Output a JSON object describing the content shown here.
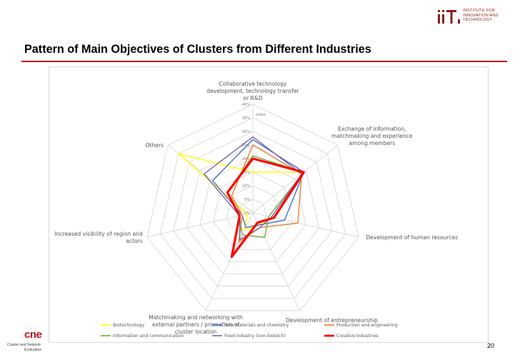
{
  "header": {
    "logo_lines": [
      "INSTITUTE FOR",
      "INNOVATION AND",
      "TECHNOLOGY"
    ],
    "logo_color": "#8a1c1c"
  },
  "slide": {
    "title": "Pattern of Main Objectives of Clusters from Different Industries",
    "accent_color": "#b5121b",
    "page_number": "20"
  },
  "footer": {
    "cne_logo": "cne",
    "cne_line1": "Cluster and Network",
    "cne_line2": "Evaluation"
  },
  "chart_data": {
    "type": "radar",
    "axes": [
      "Collaborative technology development, technology transfer or R&D",
      "Exchange of information, matchmaking and experience among members",
      "Development of human resources",
      "Development of entrepreneurship",
      "Matchmaking and networking with external partners / promotion of cluster location",
      "Increased visibility of region and actors",
      "Others"
    ],
    "axis_label_lines": [
      [
        "Collaborative technology",
        "development, technology transfer",
        "or R&D"
      ],
      [
        "Exchange of information,",
        "matchmaking and experience",
        "among members"
      ],
      [
        "Development of human resources"
      ],
      [
        "Development of entrepreneurship"
      ],
      [
        "Matchmaking and networking with",
        "external partners / promotion of",
        "cluster location"
      ],
      [
        "Increased visibility of region and",
        "actors"
      ],
      [
        "Others"
      ]
    ],
    "scale_label": "share",
    "ylim": [
      0,
      40
    ],
    "ticks": [
      "0%",
      "5%",
      "10%",
      "15%",
      "20%",
      "25%",
      "30%",
      "35%",
      "40%"
    ],
    "tick_values": [
      0,
      5,
      10,
      15,
      20,
      25,
      30,
      35,
      40
    ],
    "grid": true,
    "legend_position": "bottom",
    "series": [
      {
        "name": "Biotechnology",
        "color": "#ffff00",
        "width": 1.4,
        "values": [
          15,
          24,
          8,
          5,
          7,
          2,
          35
        ]
      },
      {
        "name": "New Materials and chemistry",
        "color": "#4472c4",
        "width": 1.4,
        "values": [
          27,
          24,
          12,
          5,
          6,
          4,
          19
        ]
      },
      {
        "name": "Production and engineering",
        "color": "#ed7d31",
        "width": 1.4,
        "values": [
          25,
          23,
          17,
          6,
          12,
          4,
          10
        ]
      },
      {
        "name": "Information and communication",
        "color": "#70ad47",
        "width": 1.4,
        "values": [
          21,
          24,
          6,
          10,
          9,
          5,
          12
        ]
      },
      {
        "name": "Food industry (non-biotech)",
        "color": "#8064a2",
        "width": 1.4,
        "values": [
          28,
          23,
          7,
          6,
          11,
          5,
          23
        ]
      },
      {
        "name": "Creative Industries",
        "color": "#ff0000",
        "width": 3.2,
        "values": [
          20,
          24,
          8,
          4,
          18,
          5,
          12
        ]
      }
    ]
  }
}
